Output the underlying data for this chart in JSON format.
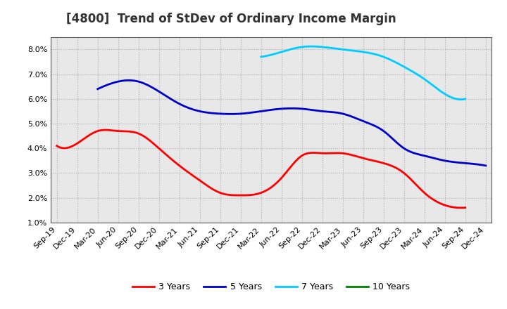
{
  "title": "[4800]  Trend of StDev of Ordinary Income Margin",
  "x_labels": [
    "Sep-19",
    "Dec-19",
    "Mar-20",
    "Jun-20",
    "Sep-20",
    "Dec-20",
    "Mar-21",
    "Jun-21",
    "Sep-21",
    "Dec-21",
    "Mar-22",
    "Jun-22",
    "Sep-22",
    "Dec-22",
    "Mar-23",
    "Jun-23",
    "Sep-23",
    "Dec-23",
    "Mar-24",
    "Jun-24",
    "Sep-24",
    "Dec-24"
  ],
  "ylim": [
    0.01,
    0.085
  ],
  "yticks": [
    0.01,
    0.02,
    0.03,
    0.04,
    0.05,
    0.06,
    0.07,
    0.08
  ],
  "ytick_labels": [
    "1.0%",
    "2.0%",
    "3.0%",
    "4.0%",
    "5.0%",
    "6.0%",
    "7.0%",
    "8.0%"
  ],
  "series": {
    "3 Years": {
      "color": "#ff0000",
      "indices": [
        0,
        1,
        2,
        3,
        4,
        5,
        6,
        7,
        8,
        9,
        10,
        11,
        12,
        13,
        14,
        15,
        16,
        17,
        18,
        19,
        20
      ],
      "values": [
        0.041,
        0.042,
        0.047,
        0.047,
        0.046,
        0.04,
        0.033,
        0.027,
        0.022,
        0.021,
        0.022,
        0.028,
        0.037,
        0.038,
        0.038,
        0.036,
        0.034,
        0.03,
        0.022,
        0.017,
        0.016
      ]
    },
    "5 Years": {
      "color": "#0000cc",
      "indices": [
        2,
        3,
        4,
        5,
        6,
        7,
        8,
        9,
        10,
        11,
        12,
        13,
        14,
        15,
        16,
        17,
        18,
        19,
        20,
        21
      ],
      "values": [
        0.064,
        0.067,
        0.067,
        0.063,
        0.058,
        0.055,
        0.054,
        0.054,
        0.055,
        0.056,
        0.056,
        0.055,
        0.054,
        0.051,
        0.047,
        0.04,
        0.037,
        0.035,
        0.034,
        0.033
      ]
    },
    "7 Years": {
      "color": "#00ccff",
      "indices": [
        10,
        11,
        12,
        13,
        14,
        15,
        16,
        17,
        18,
        19,
        20
      ],
      "values": [
        0.077,
        0.079,
        0.081,
        0.081,
        0.08,
        0.079,
        0.077,
        0.073,
        0.068,
        0.062,
        0.06
      ]
    },
    "10 Years": {
      "color": "#008000",
      "indices": [],
      "values": []
    }
  },
  "legend_entries": [
    "3 Years",
    "5 Years",
    "7 Years",
    "10 Years"
  ],
  "legend_colors": [
    "#ff0000",
    "#0000cc",
    "#00ccff",
    "#008000"
  ],
  "background_color": "#ffffff",
  "plot_bg_color": "#e8e8e8",
  "grid_color": "#aaaaaa",
  "title_fontsize": 12,
  "tick_fontsize": 8,
  "legend_fontsize": 9
}
